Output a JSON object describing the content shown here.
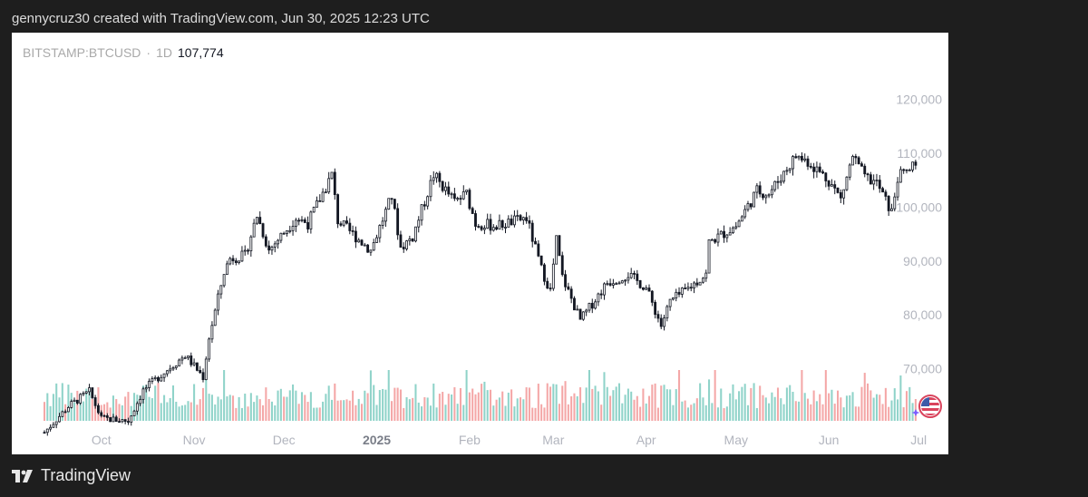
{
  "caption": "gennycruz30 created with TradingView.com, Jun 30, 2025 12:23 UTC",
  "header": {
    "symbol": "BITSTAMP:BTCUSD",
    "separator": "·",
    "interval": "1D",
    "last_price": "107,774"
  },
  "footer": {
    "brand": "TradingView"
  },
  "colors": {
    "up_volume": "#8fd3c9",
    "down_volume": "#f4a7a7",
    "candle": "#131722",
    "axis_text": "#b2b5be"
  },
  "icons": [
    "tradingview-logo-icon",
    "us-flag-icon"
  ],
  "chart_data": {
    "type": "candlestick",
    "title": "",
    "xlabel": "",
    "ylabel": "",
    "ylim": [
      60000,
      126000
    ],
    "y_ticks": [
      "120,000",
      "110,000",
      "100,000",
      "90,000",
      "80,000",
      "70,000"
    ],
    "y_tick_values": [
      120000,
      110000,
      100000,
      90000,
      80000,
      70000
    ],
    "x_ticks": [
      {
        "label": "Oct",
        "date": "2024-10-01"
      },
      {
        "label": "Nov",
        "date": "2024-11-01"
      },
      {
        "label": "Dec",
        "date": "2024-12-01"
      },
      {
        "label": "2025",
        "date": "2025-01-01"
      },
      {
        "label": "Feb",
        "date": "2025-02-01"
      },
      {
        "label": "Mar",
        "date": "2025-03-01"
      },
      {
        "label": "Apr",
        "date": "2025-04-01"
      },
      {
        "label": "May",
        "date": "2025-05-01"
      },
      {
        "label": "Jun",
        "date": "2025-06-01"
      },
      {
        "label": "Jul",
        "date": "2025-07-01"
      }
    ],
    "x_range": [
      "2024-09-12",
      "2025-07-07"
    ],
    "close_anchors": [
      [
        "2024-09-12",
        58200
      ],
      [
        "2024-09-20",
        63000
      ],
      [
        "2024-09-27",
        65800
      ],
      [
        "2024-10-01",
        60800
      ],
      [
        "2024-10-10",
        60300
      ],
      [
        "2024-10-15",
        66000
      ],
      [
        "2024-10-21",
        68900
      ],
      [
        "2024-10-29",
        72500
      ],
      [
        "2024-11-04",
        68500
      ],
      [
        "2024-11-06",
        75800
      ],
      [
        "2024-11-11",
        88000
      ],
      [
        "2024-11-13",
        90500
      ],
      [
        "2024-11-18",
        91000
      ],
      [
        "2024-11-22",
        98500
      ],
      [
        "2024-11-26",
        92000
      ],
      [
        "2024-12-05",
        98000
      ],
      [
        "2024-12-09",
        97000
      ],
      [
        "2024-12-17",
        106000
      ],
      [
        "2024-12-19",
        97500
      ],
      [
        "2024-12-30",
        92000
      ],
      [
        "2025-01-06",
        102000
      ],
      [
        "2025-01-09",
        92500
      ],
      [
        "2025-01-13",
        94500
      ],
      [
        "2025-01-20",
        106000
      ],
      [
        "2025-01-27",
        101000
      ],
      [
        "2025-01-31",
        102500
      ],
      [
        "2025-02-03",
        97000
      ],
      [
        "2025-02-10",
        96500
      ],
      [
        "2025-02-20",
        98000
      ],
      [
        "2025-02-25",
        88500
      ],
      [
        "2025-02-28",
        84500
      ],
      [
        "2025-03-02",
        94000
      ],
      [
        "2025-03-04",
        87000
      ],
      [
        "2025-03-10",
        79000
      ],
      [
        "2025-03-19",
        86000
      ],
      [
        "2025-03-26",
        87500
      ],
      [
        "2025-04-01",
        85000
      ],
      [
        "2025-04-06",
        78000
      ],
      [
        "2025-04-09",
        82500
      ],
      [
        "2025-04-14",
        84500
      ],
      [
        "2025-04-21",
        87500
      ],
      [
        "2025-04-22",
        93500
      ],
      [
        "2025-05-01",
        96500
      ],
      [
        "2025-05-08",
        103000
      ],
      [
        "2025-05-12",
        102500
      ],
      [
        "2025-05-21",
        109500
      ],
      [
        "2025-05-25",
        108500
      ],
      [
        "2025-06-01",
        105000
      ],
      [
        "2025-06-05",
        101500
      ],
      [
        "2025-06-09",
        109500
      ],
      [
        "2025-06-13",
        105500
      ],
      [
        "2025-06-17",
        104500
      ],
      [
        "2025-06-22",
        99000
      ],
      [
        "2025-06-24",
        105500
      ],
      [
        "2025-06-30",
        107774
      ]
    ],
    "volume_note": "daily volume bars, teal on up days and red on down days, in the lower band"
  }
}
